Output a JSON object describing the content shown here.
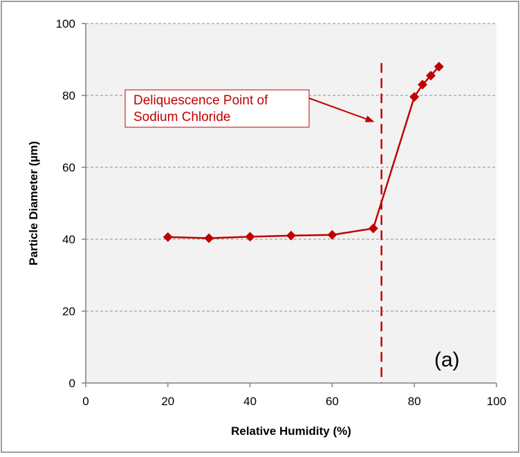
{
  "chart_data": {
    "type": "line",
    "title": "",
    "xlabel": "Relative Humidity (%)",
    "ylabel": "Particle Diameter (µm)",
    "xlim": [
      0,
      100
    ],
    "ylim": [
      0,
      100
    ],
    "x_ticks": [
      0,
      20,
      40,
      60,
      80,
      100
    ],
    "y_ticks": [
      0,
      20,
      40,
      60,
      80,
      100
    ],
    "grid": true,
    "marker": "diamond",
    "series": [
      {
        "name": "",
        "x": [
          20,
          30,
          40,
          50,
          60,
          70,
          80,
          82,
          84,
          86
        ],
        "y": [
          40.6,
          40.3,
          40.7,
          41.0,
          41.2,
          43.0,
          79.6,
          83.0,
          85.5,
          88.0
        ]
      }
    ],
    "reference_line": {
      "x": 72,
      "style": "dashed"
    },
    "annotation": {
      "lines": [
        "Deliquescence Point of",
        "Sodium Chloride"
      ],
      "arrow_to": [
        72,
        73
      ]
    },
    "panel_label": "(a)",
    "colors": {
      "series": "#c00000",
      "annotation_text": "#c00000",
      "plot_background": "#f2f2f2",
      "grid": "#8c8c8c",
      "axis": "#808080"
    }
  }
}
